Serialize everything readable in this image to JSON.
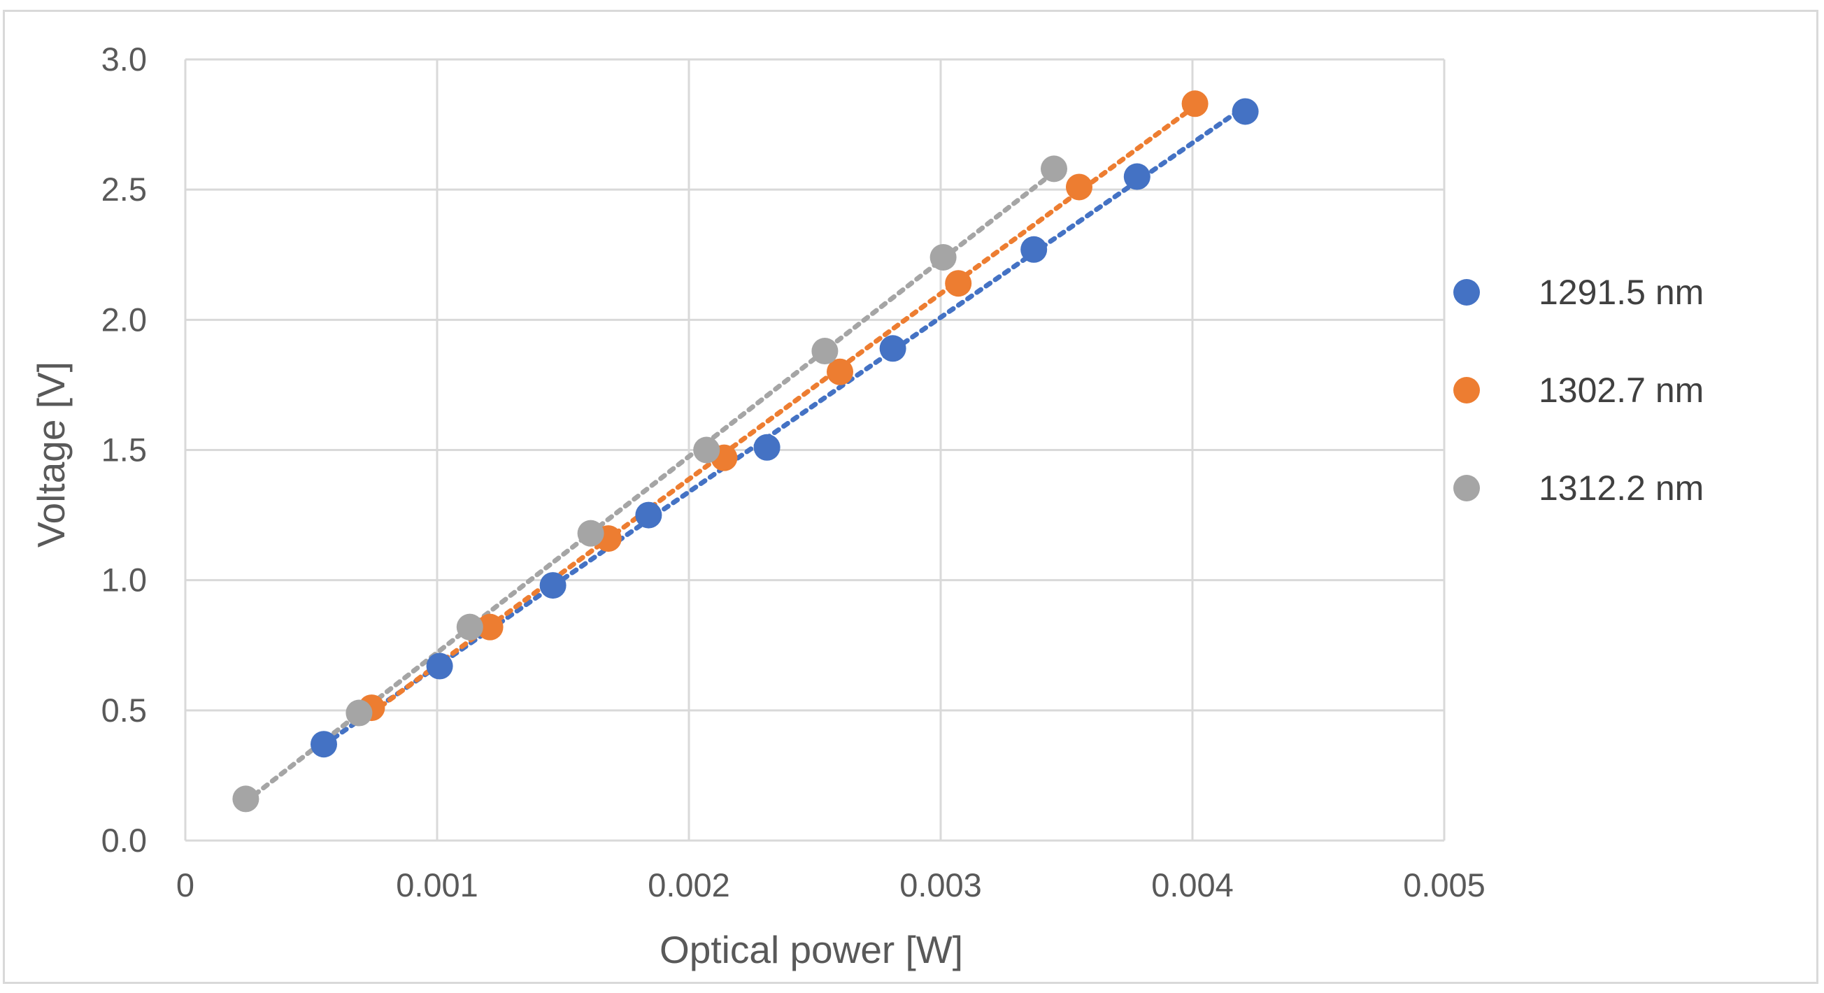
{
  "chart_data": {
    "type": "scatter",
    "xlabel": "Optical power [W]",
    "ylabel": "Voltage [V]",
    "xlim": [
      0,
      0.005
    ],
    "ylim": [
      0,
      3.0
    ],
    "x_ticks": [
      "0",
      "0.001",
      "0.002",
      "0.003",
      "0.004",
      "0.005"
    ],
    "y_ticks": [
      "0.0",
      "0.5",
      "1.0",
      "1.5",
      "2.0",
      "2.5",
      "3.0"
    ],
    "grid": true,
    "legend_position": "right",
    "trendline": "linear, dotted",
    "series": [
      {
        "name": "1291.5 nm",
        "color": "#4472c4",
        "x": [
          0.00055,
          0.00101,
          0.00146,
          0.00184,
          0.00231,
          0.00281,
          0.00337,
          0.00378,
          0.00421
        ],
        "y": [
          0.37,
          0.67,
          0.98,
          1.25,
          1.51,
          1.89,
          2.27,
          2.55,
          2.8
        ]
      },
      {
        "name": "1302.7 nm",
        "color": "#ed7d31",
        "x": [
          0.00074,
          0.00121,
          0.00168,
          0.00214,
          0.0026,
          0.00307,
          0.00355,
          0.00401
        ],
        "y": [
          0.51,
          0.82,
          1.16,
          1.47,
          1.8,
          2.14,
          2.51,
          2.83
        ]
      },
      {
        "name": "1312.2 nm",
        "color": "#a5a5a5",
        "x": [
          0.00024,
          0.00069,
          0.00113,
          0.00161,
          0.00207,
          0.00254,
          0.00301,
          0.00345
        ],
        "y": [
          0.16,
          0.49,
          0.82,
          1.18,
          1.5,
          1.88,
          2.24,
          2.58
        ]
      }
    ]
  }
}
